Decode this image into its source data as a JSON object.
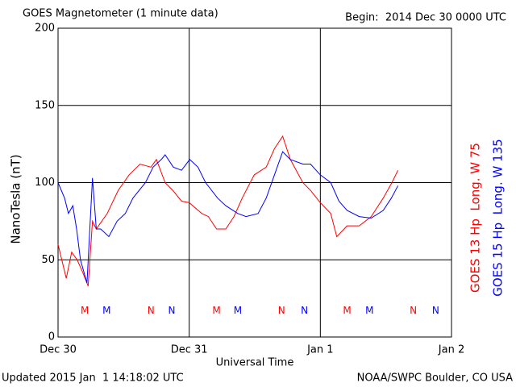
{
  "chart_data": {
    "type": "line",
    "title": "GOES Magnetometer (1 minute data)",
    "subtitle": "Begin:  2014 Dec 30 0000 UTC",
    "ylabel": "NanoTesla (nT)",
    "xlabel": "Universal Time",
    "footer_left": "Updated 2015 Jan  1 14:18:02 UTC",
    "footer_right": "NOAA/SWPC Boulder, CO USA",
    "xlim": [
      0,
      72
    ],
    "xticks": [
      {
        "value": 0,
        "label": "Dec 30"
      },
      {
        "value": 24,
        "label": "Dec 31"
      },
      {
        "value": 48,
        "label": "Jan 1"
      },
      {
        "value": 72,
        "label": "Jan 2"
      }
    ],
    "ylim": [
      0,
      200
    ],
    "yticks": [
      0,
      50,
      100,
      150,
      200
    ],
    "grid": true,
    "series": [
      {
        "name": "GOES 13 Hp  Long. W 75",
        "color": "#ff0000",
        "x": [
          0,
          1.5,
          2.5,
          3.5,
          4.5,
          5.5,
          6.3,
          7,
          9,
          11,
          13,
          15,
          17,
          18,
          19.6,
          21,
          22.6,
          24,
          26.3,
          27.5,
          29,
          30.7,
          32.2,
          33.7,
          35.9,
          38.1,
          39.6,
          41.1,
          42.5,
          44.8,
          46.2,
          48,
          49.9,
          51,
          52.9,
          55.1,
          57.3,
          59.5,
          61.1,
          62.2
        ],
        "values": [
          60,
          38,
          55,
          50,
          42,
          33,
          75,
          70,
          80,
          95,
          105,
          112,
          110,
          115,
          100,
          95,
          88,
          87,
          80,
          78,
          70,
          70,
          78,
          90,
          105,
          110,
          122,
          130,
          115,
          100,
          95,
          87,
          80,
          65,
          72,
          72,
          78,
          90,
          100,
          108
        ]
      },
      {
        "name": "GOES 15 Hp  Long. W 135",
        "color": "#0000ff",
        "x": [
          0,
          1.2,
          1.9,
          2.7,
          3.4,
          4.1,
          5.3,
          6.3,
          7,
          7.8,
          9.3,
          10.8,
          12.3,
          13.7,
          16,
          17.4,
          18.9,
          19.6,
          21.1,
          22.6,
          24.1,
          25.6,
          27,
          29.2,
          30.7,
          32.9,
          34.4,
          36.6,
          38.1,
          39.6,
          41.1,
          42.5,
          44.8,
          46.2,
          48,
          49.9,
          51.4,
          52.9,
          55.1,
          57.3,
          59.5,
          61,
          62.2
        ],
        "values": [
          100,
          90,
          80,
          85,
          70,
          50,
          35,
          103,
          70,
          70,
          65,
          75,
          80,
          90,
          100,
          110,
          115,
          118,
          110,
          108,
          115,
          110,
          100,
          90,
          85,
          80,
          78,
          80,
          90,
          105,
          120,
          115,
          112,
          112,
          105,
          100,
          88,
          82,
          78,
          77,
          82,
          90,
          98
        ]
      }
    ],
    "annotations": [
      {
        "text": "M",
        "series": 0,
        "x": 4.9,
        "y": 17
      },
      {
        "text": "M",
        "series": 1,
        "x": 8.9,
        "y": 17
      },
      {
        "text": "N",
        "series": 0,
        "x": 17,
        "y": 17
      },
      {
        "text": "N",
        "series": 1,
        "x": 20.8,
        "y": 17
      },
      {
        "text": "M",
        "series": 0,
        "x": 29,
        "y": 17
      },
      {
        "text": "M",
        "series": 1,
        "x": 32.9,
        "y": 17
      },
      {
        "text": "N",
        "series": 0,
        "x": 40.9,
        "y": 17
      },
      {
        "text": "N",
        "series": 1,
        "x": 45.1,
        "y": 17
      },
      {
        "text": "M",
        "series": 0,
        "x": 52.9,
        "y": 17
      },
      {
        "text": "M",
        "series": 1,
        "x": 57,
        "y": 17
      },
      {
        "text": "N",
        "series": 0,
        "x": 65,
        "y": 17
      },
      {
        "text": "N",
        "series": 1,
        "x": 69.1,
        "y": 17
      }
    ]
  }
}
